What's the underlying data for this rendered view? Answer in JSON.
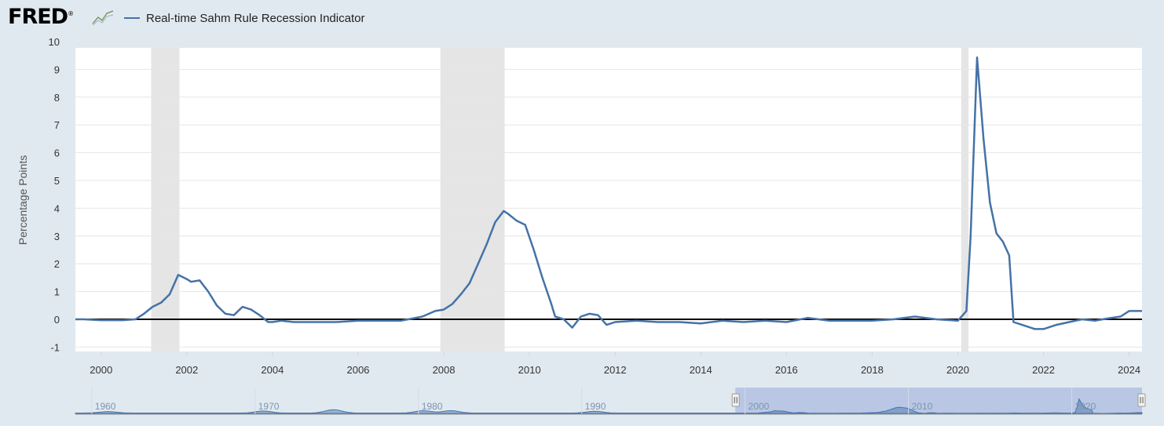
{
  "header": {
    "logo_text": "FRED",
    "logo_mark": "®",
    "series_name": "Real-time Sahm Rule Recession Indicator"
  },
  "icons": {
    "logo": "chart-line-icon",
    "navigator_handle": "grip-icon"
  },
  "colors": {
    "series": "#4572a7",
    "recession_band": "#e5e5e5",
    "zero_line": "#000000",
    "background": "#e1e9f0",
    "plot_bg": "#ffffff"
  },
  "chart_data": {
    "type": "line",
    "title": "",
    "xlabel": "",
    "ylabel": "Percentage Points",
    "xlim": [
      1999.4,
      2024.3
    ],
    "ylim": [
      -1,
      10
    ],
    "yticks": [
      -1,
      0,
      1,
      2,
      3,
      4,
      5,
      6,
      7,
      8,
      9,
      10
    ],
    "xticks": [
      "2000",
      "2002",
      "2004",
      "2006",
      "2008",
      "2010",
      "2012",
      "2014",
      "2016",
      "2018",
      "2020",
      "2022",
      "2024"
    ],
    "grid": true,
    "zero_line": 0,
    "recessions": [
      [
        2001.17,
        2001.83
      ],
      [
        2007.92,
        2009.42
      ],
      [
        2020.08,
        2020.25
      ]
    ],
    "series": [
      {
        "name": "Real-time Sahm Rule Recession Indicator",
        "x": [
          1999.4,
          1999.6,
          2000.0,
          2000.5,
          2000.8,
          2001.0,
          2001.2,
          2001.4,
          2001.6,
          2001.8,
          2002.0,
          2002.1,
          2002.3,
          2002.5,
          2002.7,
          2002.9,
          2003.1,
          2003.3,
          2003.5,
          2003.7,
          2003.9,
          2004.0,
          2004.2,
          2004.5,
          2005.0,
          2005.5,
          2006.0,
          2006.5,
          2007.0,
          2007.5,
          2007.8,
          2008.0,
          2008.2,
          2008.4,
          2008.6,
          2008.8,
          2009.0,
          2009.2,
          2009.4,
          2009.5,
          2009.7,
          2009.9,
          2010.1,
          2010.3,
          2010.5,
          2010.6,
          2010.8,
          2011.0,
          2011.2,
          2011.4,
          2011.6,
          2011.8,
          2012.0,
          2012.5,
          2013.0,
          2013.5,
          2014.0,
          2014.5,
          2015.0,
          2015.5,
          2016.0,
          2016.5,
          2017.0,
          2017.5,
          2018.0,
          2018.5,
          2019.0,
          2019.5,
          2020.0,
          2020.2,
          2020.3,
          2020.45,
          2020.6,
          2020.75,
          2020.9,
          2021.05,
          2021.2,
          2021.3,
          2021.5,
          2021.8,
          2022.0,
          2022.3,
          2022.6,
          2022.9,
          2023.2,
          2023.5,
          2023.8,
          2024.0,
          2024.3
        ],
        "values": [
          0.0,
          0.0,
          -0.03,
          -0.03,
          0.0,
          0.2,
          0.45,
          0.6,
          0.9,
          1.6,
          1.45,
          1.35,
          1.4,
          1.0,
          0.5,
          0.2,
          0.15,
          0.45,
          0.35,
          0.15,
          -0.1,
          -0.1,
          -0.05,
          -0.1,
          -0.1,
          -0.1,
          -0.05,
          -0.05,
          -0.05,
          0.1,
          0.3,
          0.35,
          0.55,
          0.9,
          1.3,
          2.0,
          2.7,
          3.5,
          3.9,
          3.8,
          3.55,
          3.4,
          2.5,
          1.5,
          0.6,
          0.1,
          0.0,
          -0.3,
          0.1,
          0.2,
          0.15,
          -0.2,
          -0.1,
          -0.05,
          -0.1,
          -0.1,
          -0.15,
          -0.05,
          -0.1,
          -0.05,
          -0.1,
          0.05,
          -0.05,
          -0.05,
          -0.05,
          0.0,
          0.1,
          0.0,
          -0.05,
          0.3,
          3.0,
          9.43,
          6.5,
          4.2,
          3.1,
          2.8,
          2.3,
          -0.1,
          -0.2,
          -0.35,
          -0.35,
          -0.2,
          -0.1,
          0.0,
          -0.05,
          0.03,
          0.1,
          0.3,
          0.3
        ]
      }
    ],
    "navigator": {
      "ticks": [
        "1960",
        "1970",
        "1980",
        "1990",
        "2000",
        "2010",
        "2020"
      ],
      "xlim": [
        1959.0,
        2024.3
      ],
      "selected": [
        1999.4,
        2024.3
      ]
    }
  }
}
